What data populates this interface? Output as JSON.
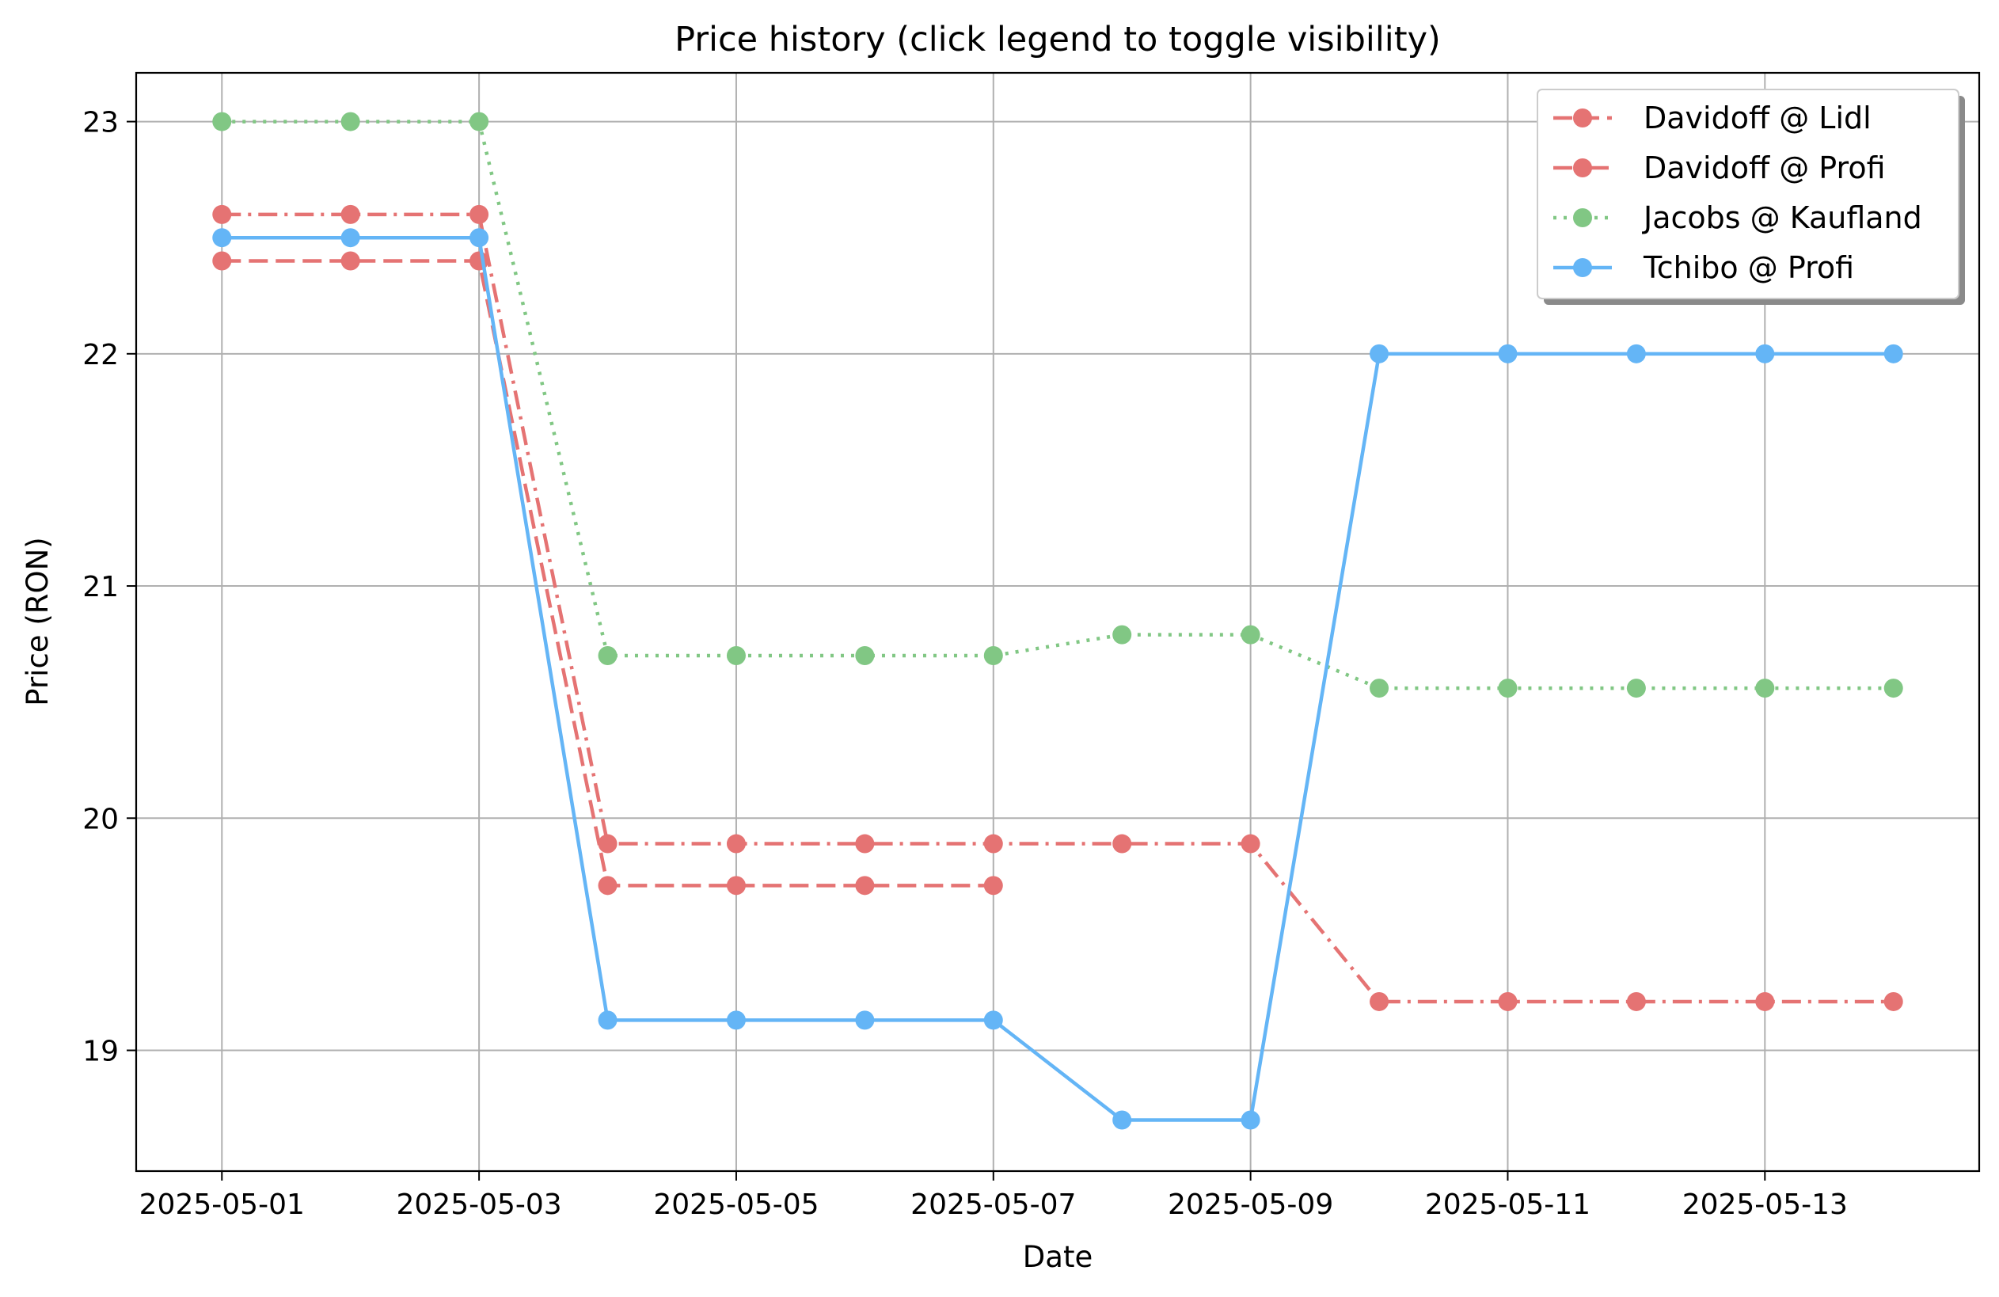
{
  "chart_data": {
    "type": "line",
    "title": "Price history (click legend to toggle visibility)",
    "xlabel": "Date",
    "ylabel": "Price (RON)",
    "x": [
      "2025-05-01",
      "2025-05-02",
      "2025-05-03",
      "2025-05-04",
      "2025-05-05",
      "2025-05-06",
      "2025-05-07",
      "2025-05-08",
      "2025-05-09",
      "2025-05-10",
      "2025-05-11",
      "2025-05-12",
      "2025-05-13",
      "2025-05-14"
    ],
    "x_tick_labels": [
      "2025-05-01",
      "2025-05-03",
      "2025-05-05",
      "2025-05-07",
      "2025-05-09",
      "2025-05-11",
      "2025-05-13"
    ],
    "xlim": [
      "2025-04-30T08:00",
      "2025-05-14T16:00"
    ],
    "y_ticks": [
      19,
      20,
      21,
      22,
      23
    ],
    "ylim": [
      18.48,
      23.21
    ],
    "grid": true,
    "legend_position": "top-right",
    "series": [
      {
        "name": "Davidoff @ Lidl",
        "color": "#e57373",
        "line_style": "dashed",
        "marker": "circle",
        "values": [
          22.4,
          22.4,
          22.4,
          19.71,
          19.71,
          19.71,
          19.71,
          null,
          null,
          null,
          null,
          null,
          null,
          null
        ]
      },
      {
        "name": "Davidoff @ Profi",
        "color": "#e57373",
        "line_style": "dashdot",
        "marker": "circle",
        "values": [
          22.6,
          22.6,
          22.6,
          19.89,
          19.89,
          19.89,
          19.89,
          19.89,
          19.89,
          19.21,
          19.21,
          19.21,
          19.21,
          19.21
        ]
      },
      {
        "name": "Jacobs @ Kaufland",
        "color": "#81c784",
        "line_style": "dotted",
        "marker": "circle",
        "values": [
          23.0,
          23.0,
          23.0,
          20.7,
          20.7,
          20.7,
          20.7,
          20.79,
          20.79,
          20.56,
          20.56,
          20.56,
          20.56,
          20.56
        ]
      },
      {
        "name": "Tchibo @ Profi",
        "color": "#64b5f6",
        "line_style": "solid",
        "marker": "circle",
        "values": [
          22.5,
          22.5,
          22.5,
          19.13,
          19.13,
          19.13,
          19.13,
          18.7,
          18.7,
          22.0,
          22.0,
          22.0,
          22.0,
          22.0
        ]
      }
    ]
  }
}
